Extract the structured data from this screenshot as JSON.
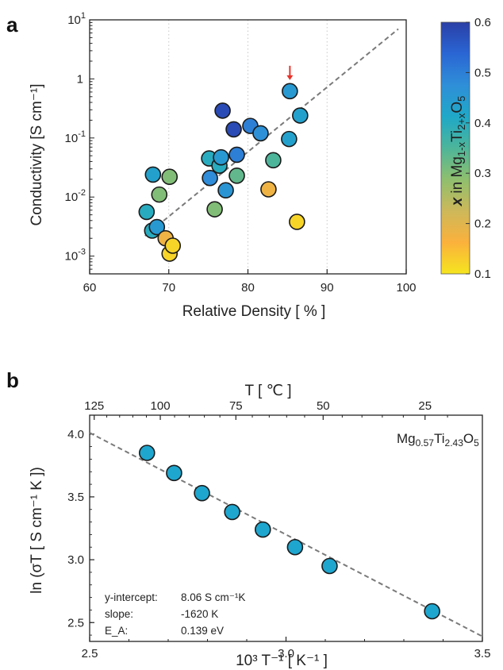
{
  "chart_data": [
    {
      "panel": "a",
      "type": "scatter",
      "xlabel": "Relative Density  [ % ]",
      "ylabel": "Conductivity  [S cm⁻¹]",
      "xlim": [
        60,
        100
      ],
      "ylim": [
        0.0005,
        10
      ],
      "yscale": "log",
      "xticks": [
        60,
        70,
        80,
        90,
        100
      ],
      "yticks": [
        {
          "value": 0.001,
          "base": "10",
          "exp": "-3"
        },
        {
          "value": 0.01,
          "base": "10",
          "exp": "-2"
        },
        {
          "value": 0.1,
          "base": "10",
          "exp": "-1"
        },
        {
          "value": 1,
          "base": "1",
          "exp": ""
        },
        {
          "value": 10,
          "base": "10",
          "exp": "1"
        }
      ],
      "vertical_dotted_lines_at": [
        70,
        80,
        90
      ],
      "trend_line": [
        [
          67,
          0.0022
        ],
        [
          99,
          7.0
        ]
      ],
      "arrow_marker": {
        "x": 85.3,
        "y": 0.62
      },
      "arrow_color": "#e8322a",
      "colorbar": {
        "label": "x in Mg1-xTi2+xO5",
        "min": 0.1,
        "max": 0.6,
        "ticks": [
          "0.6",
          "0.5",
          "0.4",
          "0.3",
          "0.2",
          "0.1"
        ],
        "colors": [
          "#f5e51f",
          "#fbb13c",
          "#cdb85a",
          "#8fbf6e",
          "#4db59a",
          "#1fa8c8",
          "#2f8fd8",
          "#2a66d4",
          "#2a3fa6"
        ]
      },
      "points": [
        {
          "x": 67.2,
          "y": 0.0056,
          "c": 0.4
        },
        {
          "x": 67.9,
          "y": 0.0027,
          "c": 0.4
        },
        {
          "x": 68.0,
          "y": 0.024,
          "c": 0.43
        },
        {
          "x": 68.5,
          "y": 0.0031,
          "c": 0.45
        },
        {
          "x": 68.8,
          "y": 0.011,
          "c": 0.3
        },
        {
          "x": 69.6,
          "y": 0.002,
          "c": 0.18
        },
        {
          "x": 70.1,
          "y": 0.0011,
          "c": 0.12
        },
        {
          "x": 70.1,
          "y": 0.022,
          "c": 0.3
        },
        {
          "x": 70.5,
          "y": 0.0015,
          "c": 0.12
        },
        {
          "x": 75.1,
          "y": 0.045,
          "c": 0.4
        },
        {
          "x": 75.2,
          "y": 0.021,
          "c": 0.48
        },
        {
          "x": 75.8,
          "y": 0.0062,
          "c": 0.3
        },
        {
          "x": 76.4,
          "y": 0.034,
          "c": 0.4
        },
        {
          "x": 76.6,
          "y": 0.047,
          "c": 0.45
        },
        {
          "x": 76.8,
          "y": 0.29,
          "c": 0.58
        },
        {
          "x": 77.2,
          "y": 0.013,
          "c": 0.46
        },
        {
          "x": 78.2,
          "y": 0.14,
          "c": 0.58
        },
        {
          "x": 78.6,
          "y": 0.052,
          "c": 0.5
        },
        {
          "x": 78.6,
          "y": 0.023,
          "c": 0.33
        },
        {
          "x": 80.3,
          "y": 0.16,
          "c": 0.5
        },
        {
          "x": 81.6,
          "y": 0.12,
          "c": 0.47
        },
        {
          "x": 82.6,
          "y": 0.0135,
          "c": 0.18
        },
        {
          "x": 83.2,
          "y": 0.042,
          "c": 0.35
        },
        {
          "x": 85.2,
          "y": 0.096,
          "c": 0.43
        },
        {
          "x": 85.3,
          "y": 0.62,
          "c": 0.45
        },
        {
          "x": 86.2,
          "y": 0.0038,
          "c": 0.12
        },
        {
          "x": 86.6,
          "y": 0.24,
          "c": 0.43
        }
      ]
    },
    {
      "panel": "b",
      "type": "scatter",
      "xlabel": "10³ T⁻¹  [ K⁻¹ ]",
      "ylabel": "ln (σT  [ S cm⁻¹ K ])",
      "top_axis_label": "T  [ ℃ ]",
      "xlim": [
        2.5,
        3.5
      ],
      "ylim": [
        2.35,
        4.15
      ],
      "xticks": [
        "2.5",
        "3.0",
        "3.5"
      ],
      "yticks": [
        "2.5",
        "3.0",
        "3.5",
        "4.0"
      ],
      "top_ticks": [
        125,
        100,
        75,
        50,
        25
      ],
      "formula": {
        "parts": [
          "Mg",
          "0.57",
          "Ti",
          "2.43",
          "O",
          "5"
        ]
      },
      "fit_line": [
        [
          2.5,
          4.01
        ],
        [
          3.5,
          2.39
        ]
      ],
      "annotation": [
        {
          "label": "y-intercept:",
          "value": "8.06 S cm⁻¹K"
        },
        {
          "label": "slope:",
          "value": "-1620 K"
        },
        {
          "label": "E_A:",
          "value": "0.139 eV"
        }
      ],
      "point_color": "#1ea6cf",
      "points": [
        {
          "x": 2.646,
          "y": 3.85
        },
        {
          "x": 2.715,
          "y": 3.69
        },
        {
          "x": 2.786,
          "y": 3.53
        },
        {
          "x": 2.863,
          "y": 3.38
        },
        {
          "x": 2.941,
          "y": 3.24
        },
        {
          "x": 3.023,
          "y": 3.1
        },
        {
          "x": 3.111,
          "y": 2.95
        },
        {
          "x": 3.372,
          "y": 2.59
        }
      ]
    }
  ],
  "panel_labels": {
    "a": "a",
    "b": "b"
  },
  "colorbar_label": {
    "x": "x",
    "in": " in Mg",
    "sub1": "1-x",
    "ti": "Ti",
    "sub2": "2+x",
    "o": "O",
    "sub3": "5"
  }
}
